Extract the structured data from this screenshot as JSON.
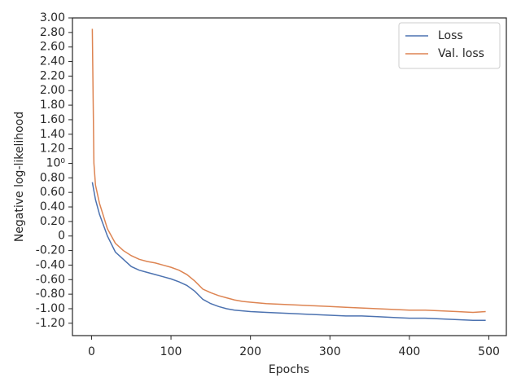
{
  "chart_data": {
    "type": "line",
    "x_label": "Epochs",
    "y_label": "Negative log-likelihood",
    "x": [
      1,
      3,
      5,
      10,
      20,
      30,
      40,
      50,
      60,
      70,
      80,
      90,
      100,
      110,
      120,
      130,
      140,
      150,
      160,
      170,
      180,
      190,
      200,
      220,
      240,
      260,
      280,
      300,
      320,
      340,
      360,
      380,
      400,
      420,
      440,
      460,
      480,
      496
    ],
    "series": [
      {
        "name": "Loss",
        "color": "#4c72b0",
        "values": [
          0.74,
          0.62,
          0.5,
          0.3,
          0.0,
          -0.22,
          -0.32,
          -0.42,
          -0.47,
          -0.5,
          -0.53,
          -0.56,
          -0.59,
          -0.63,
          -0.68,
          -0.76,
          -0.87,
          -0.93,
          -0.97,
          -1.0,
          -1.02,
          -1.03,
          -1.04,
          -1.05,
          -1.06,
          -1.07,
          -1.08,
          -1.09,
          -1.1,
          -1.1,
          -1.11,
          -1.12,
          -1.13,
          -1.13,
          -1.14,
          -1.15,
          -1.16,
          -1.16
        ]
      },
      {
        "name": "Val. loss",
        "color": "#dd8452",
        "values": [
          2.85,
          1.0,
          0.7,
          0.45,
          0.1,
          -0.1,
          -0.2,
          -0.27,
          -0.32,
          -0.35,
          -0.37,
          -0.4,
          -0.43,
          -0.47,
          -0.53,
          -0.62,
          -0.73,
          -0.78,
          -0.82,
          -0.85,
          -0.88,
          -0.9,
          -0.91,
          -0.93,
          -0.94,
          -0.95,
          -0.96,
          -0.97,
          -0.98,
          -0.99,
          -1.0,
          -1.01,
          -1.02,
          -1.02,
          -1.03,
          -1.04,
          -1.05,
          -1.04
        ]
      }
    ],
    "xlim": [
      -24,
      522
    ],
    "xticks": [
      0,
      100,
      200,
      300,
      400,
      500
    ],
    "ylim": [
      -1.37,
      3.0
    ],
    "yticks": [
      {
        "value": 3.0,
        "label": "3.00"
      },
      {
        "value": 2.8,
        "label": "2.80"
      },
      {
        "value": 2.6,
        "label": "2.60"
      },
      {
        "value": 2.4,
        "label": "2.40"
      },
      {
        "value": 2.2,
        "label": "2.20"
      },
      {
        "value": 2.0,
        "label": "2.00"
      },
      {
        "value": 1.8,
        "label": "1.80"
      },
      {
        "value": 1.6,
        "label": "1.60"
      },
      {
        "value": 1.4,
        "label": "1.40"
      },
      {
        "value": 1.2,
        "label": "1.20"
      },
      {
        "value": 1,
        "label": "10⁰"
      },
      {
        "value": 0.8,
        "label": "0.80"
      },
      {
        "value": 0.6,
        "label": "0.60"
      },
      {
        "value": 0.4,
        "label": "0.40"
      },
      {
        "value": 0.2,
        "label": "0.20"
      },
      0,
      {
        "value": -0.2,
        "label": "-0.20"
      },
      {
        "value": -0.4,
        "label": "-0.40"
      },
      {
        "value": -0.6,
        "label": "-0.60"
      },
      {
        "value": -0.8,
        "label": "-0.80"
      },
      {
        "value": -1.0,
        "label": "-1.00"
      },
      {
        "value": -1.2,
        "label": "-1.20"
      }
    ],
    "grid": false,
    "legend": "upper right"
  }
}
